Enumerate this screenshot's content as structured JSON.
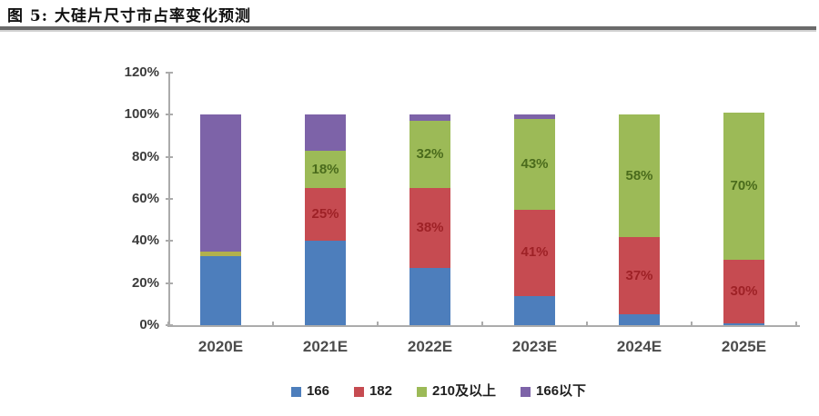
{
  "title": "图 5: 大硅片尺寸市占率变化预测",
  "chart_data": {
    "type": "bar",
    "stacked": true,
    "title": "大硅片尺寸市占率变化预测",
    "categories": [
      "2020E",
      "2021E",
      "2022E",
      "2023E",
      "2024E",
      "2025E"
    ],
    "series": [
      {
        "name": "166",
        "color": "#4d7ebc",
        "label_color": "#17375e",
        "values": [
          33,
          40,
          27,
          14,
          5,
          1
        ],
        "labels": [
          "",
          "",
          "",
          "",
          "",
          ""
        ]
      },
      {
        "name": "182",
        "color": "#c64b51",
        "label_color": "#9e2126",
        "values": [
          0,
          25,
          38,
          41,
          37,
          30
        ],
        "labels": [
          "",
          "25%",
          "38%",
          "41%",
          "37%",
          "30%"
        ]
      },
      {
        "name": "210及以上",
        "color": "#9cba57",
        "point_colors": [
          "#b2b14d",
          null,
          null,
          null,
          null,
          null
        ],
        "label_color": "#4a6b1c",
        "values": [
          2,
          18,
          32,
          43,
          58,
          70
        ],
        "labels": [
          "",
          "18%",
          "32%",
          "43%",
          "58%",
          "70%"
        ]
      },
      {
        "name": "166以下",
        "color": "#7d63a8",
        "label_color": "#3f3151",
        "values": [
          65,
          17,
          3,
          2,
          0,
          0
        ],
        "labels": [
          "",
          "",
          "",
          "",
          "",
          ""
        ]
      }
    ],
    "xlabel": "",
    "ylabel": "",
    "ylim": [
      0,
      120
    ],
    "ytick_step": 20,
    "yticks": [
      "0%",
      "20%",
      "40%",
      "60%",
      "80%",
      "100%",
      "120%"
    ],
    "grid": false,
    "legend_position": "bottom"
  }
}
